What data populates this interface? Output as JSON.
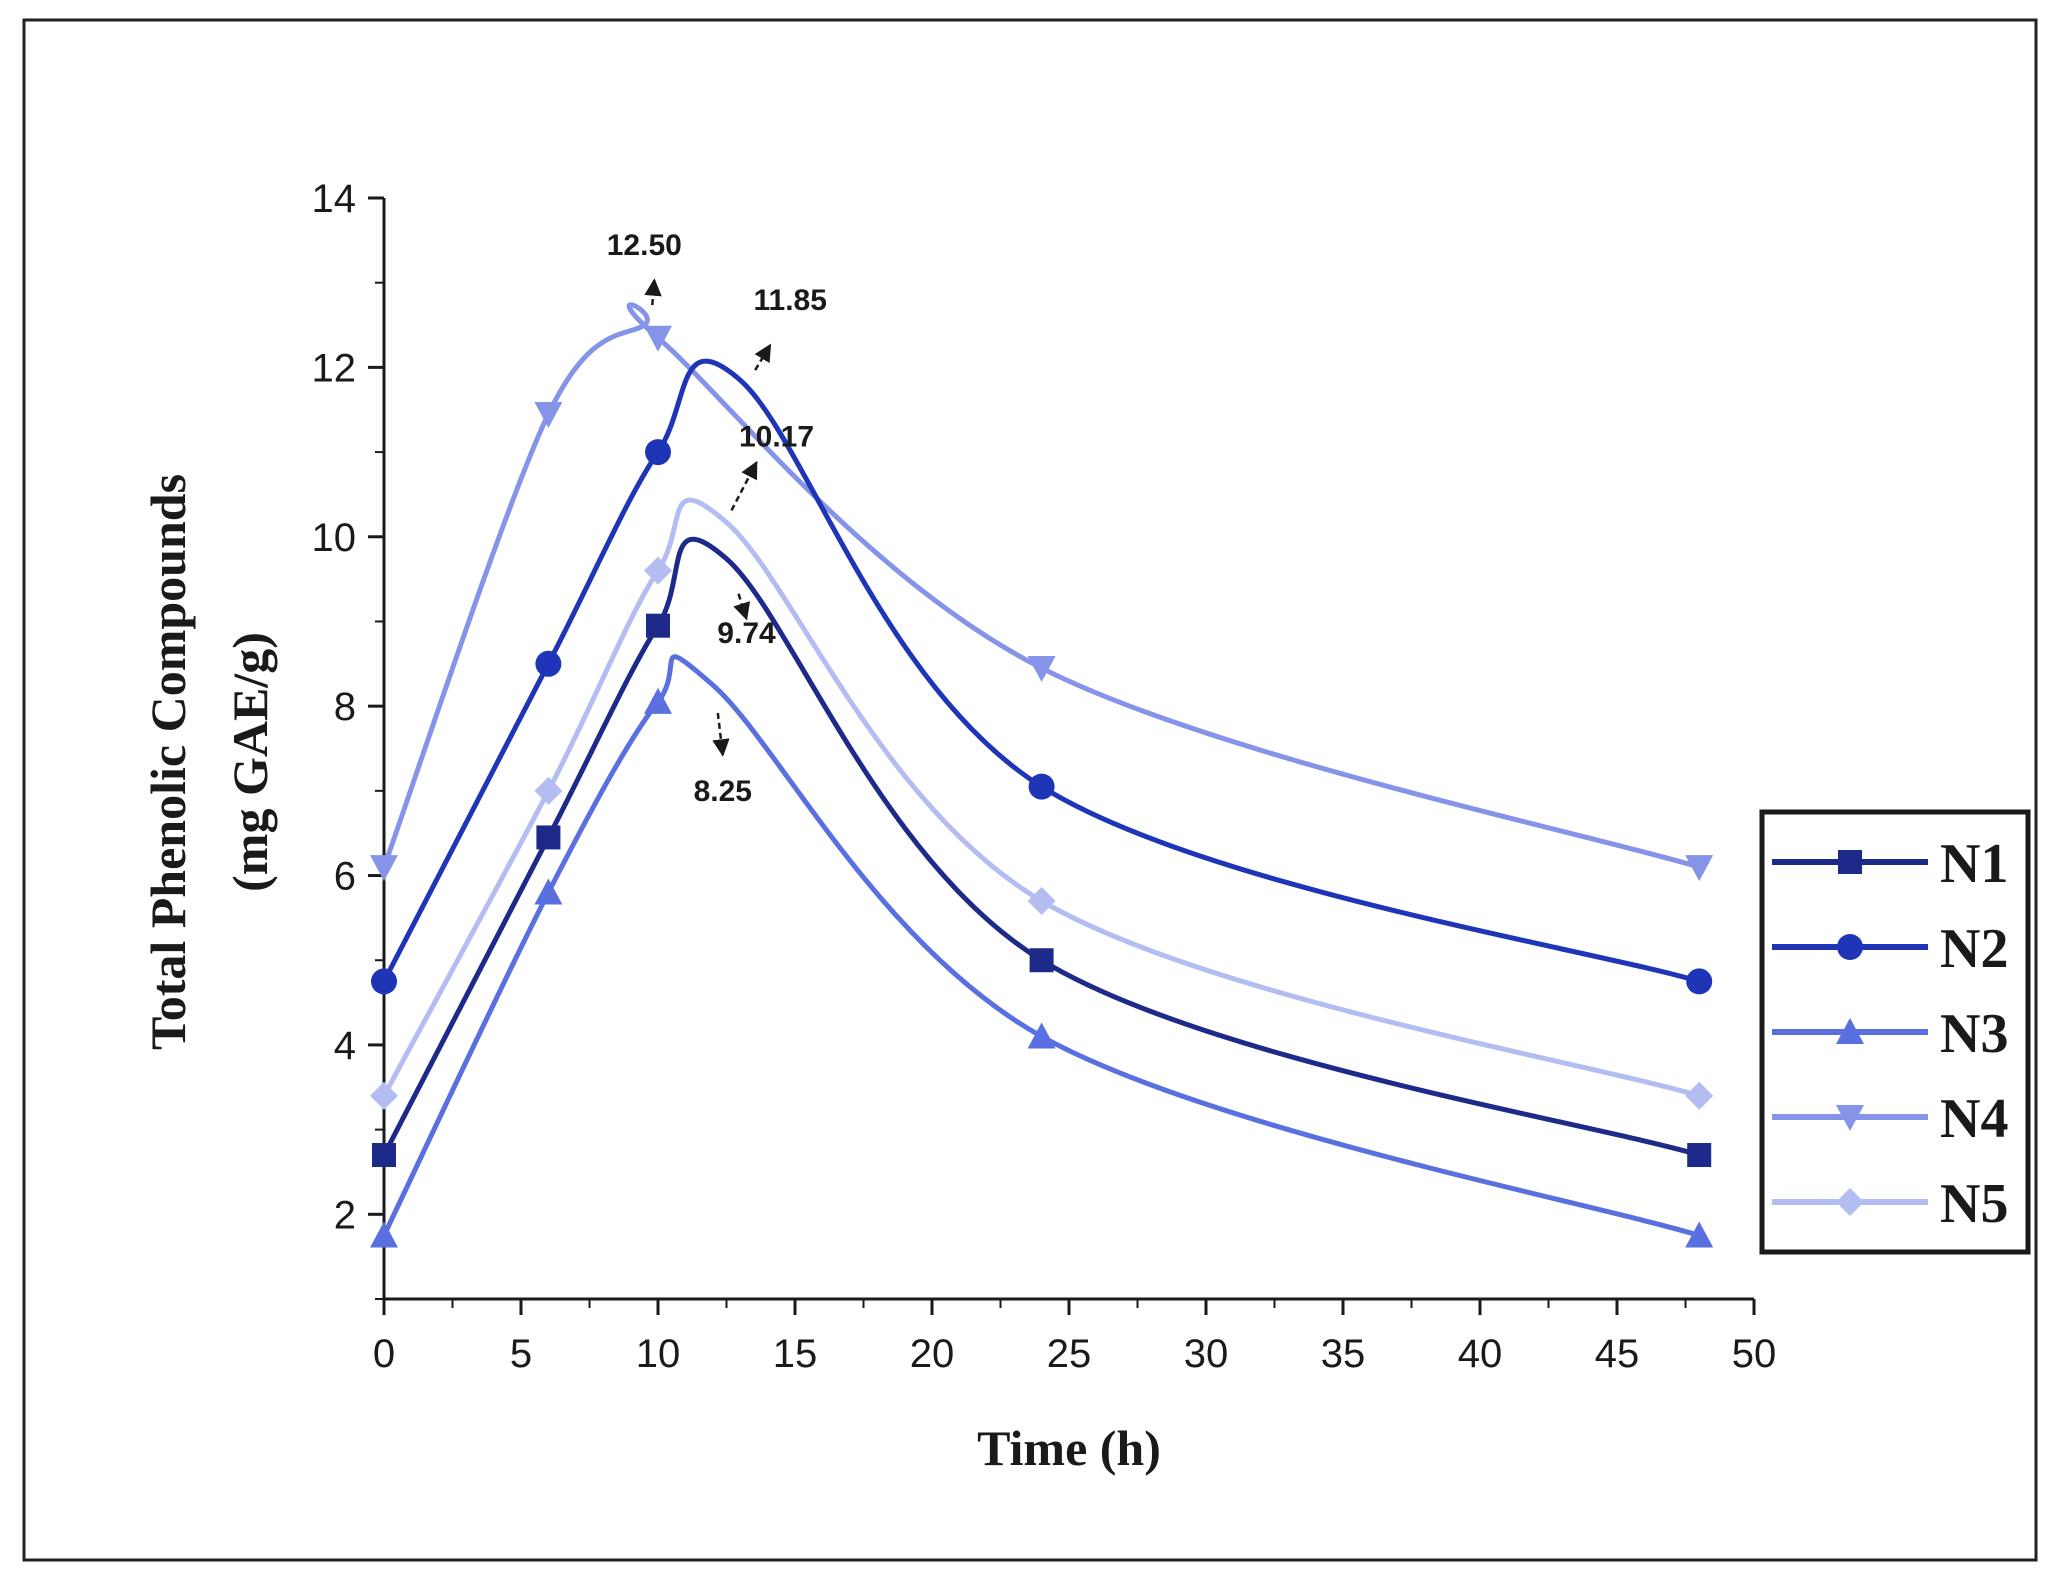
{
  "chart_data": {
    "type": "line",
    "title": "",
    "xlabel": "Time (h)",
    "ylabel_line1": "Total Phenolic Compounds",
    "ylabel_line2": "(mg GAE/g)",
    "xlim": [
      0,
      50
    ],
    "ylim": [
      1,
      14
    ],
    "xticks": [
      "0",
      "5",
      "10",
      "15",
      "20",
      "25",
      "30",
      "35",
      "40",
      "45",
      "50"
    ],
    "yticks": [
      "2",
      "4",
      "6",
      "8",
      "10",
      "12",
      "14"
    ],
    "x": [
      0,
      6,
      10,
      24,
      48
    ],
    "series": [
      {
        "name": "N1",
        "marker": "square",
        "color": "#1e2a8a",
        "values": [
          2.7,
          6.45,
          8.95,
          5.0,
          2.7
        ],
        "peak": {
          "x": 12.5,
          "y": 9.74
        }
      },
      {
        "name": "N2",
        "marker": "circle",
        "color": "#1f35b8",
        "values": [
          4.75,
          8.5,
          11.0,
          7.05,
          4.75
        ],
        "peak": {
          "x": 13,
          "y": 11.85
        }
      },
      {
        "name": "N3",
        "marker": "triangle-up",
        "color": "#5a6fe0",
        "values": [
          1.75,
          5.8,
          8.05,
          4.1,
          1.75
        ],
        "peak": {
          "x": 12,
          "y": 8.25
        }
      },
      {
        "name": "N4",
        "marker": "triangle-down",
        "color": "#8594e8",
        "values": [
          6.1,
          11.45,
          12.35,
          8.45,
          6.1
        ],
        "peak": {
          "x": 9.5,
          "y": 12.5
        }
      },
      {
        "name": "N5",
        "marker": "diamond",
        "color": "#b4bdf2",
        "values": [
          3.4,
          7.0,
          9.6,
          5.7,
          3.4
        ],
        "peak": {
          "x": 12.5,
          "y": 10.17
        }
      }
    ],
    "annotations": [
      {
        "text": "12.50",
        "series": "N4"
      },
      {
        "text": "11.85",
        "series": "N2"
      },
      {
        "text": "10.17",
        "series": "N5"
      },
      {
        "text": "9.74",
        "series": "N1"
      },
      {
        "text": "8.25",
        "series": "N3"
      }
    ],
    "legend_position": "right",
    "grid": false
  }
}
